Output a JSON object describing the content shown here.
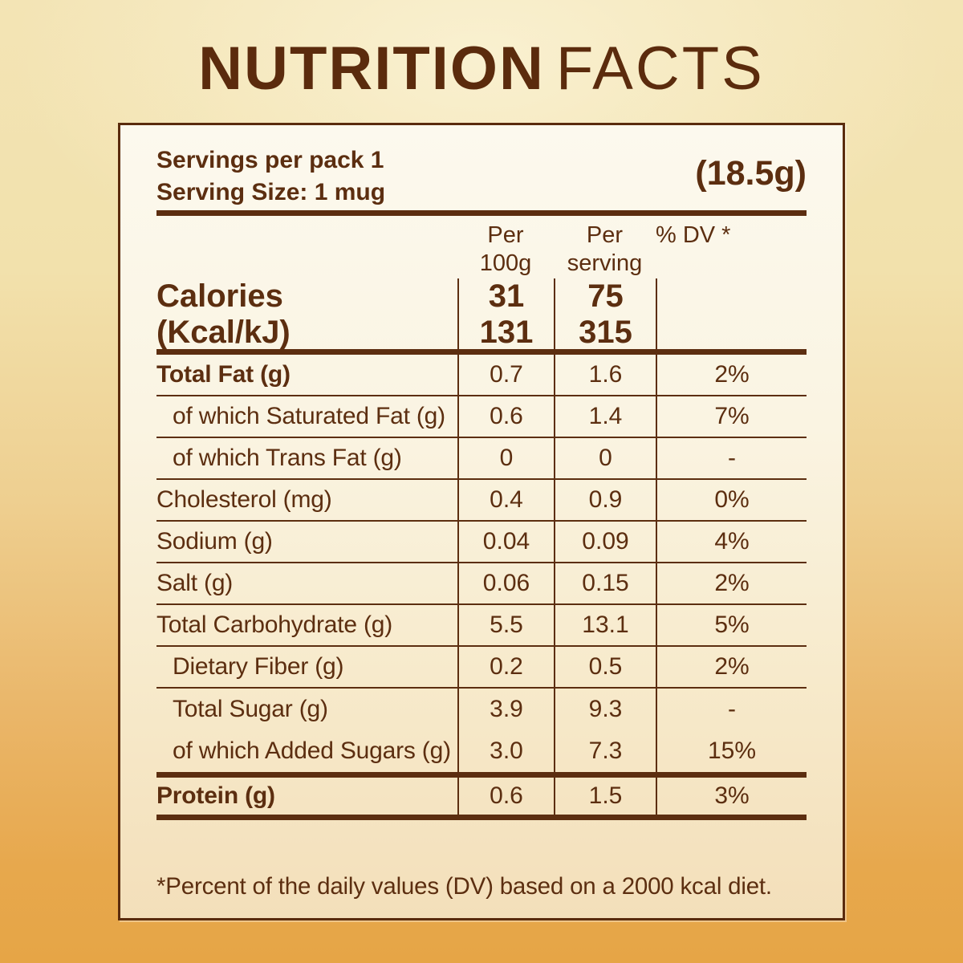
{
  "title": {
    "word_bold": "NUTRITION",
    "word_light": "FACTS"
  },
  "serving_info": {
    "servings_per_pack": "Servings per pack 1",
    "serving_size": "Serving Size: 1 mug",
    "weight": "(18.5g)"
  },
  "columns": {
    "per_100g": [
      "Per",
      "100g"
    ],
    "per_serving": [
      "Per",
      "serving"
    ],
    "dv": "% DV *"
  },
  "calories": {
    "label": [
      "Calories",
      "(Kcal/kJ)"
    ],
    "per_100g": [
      "31",
      "131"
    ],
    "per_serving": [
      "75",
      "315"
    ],
    "dv": ""
  },
  "rows": [
    {
      "label": "Total Fat (g)",
      "per_100g": "0.7",
      "per_serving": "1.6",
      "dv": "2%",
      "bold": true,
      "indent": false
    },
    {
      "label": "of which Saturated Fat (g)",
      "per_100g": "0.6",
      "per_serving": "1.4",
      "dv": "7%",
      "indent": true
    },
    {
      "label": "of which Trans Fat (g)",
      "per_100g": "0",
      "per_serving": "0",
      "dv": "-",
      "indent": true
    },
    {
      "label": "Cholesterol (mg)",
      "per_100g": "0.4",
      "per_serving": "0.9",
      "dv": "0%"
    },
    {
      "label": "Sodium (g)",
      "per_100g": "0.04",
      "per_serving": "0.09",
      "dv": "4%"
    },
    {
      "label": "Salt (g)",
      "per_100g": "0.06",
      "per_serving": "0.15",
      "dv": "2%"
    },
    {
      "label": "Total Carbohydrate (g)",
      "per_100g": "5.5",
      "per_serving": "13.1",
      "dv": "5%"
    },
    {
      "label": "Dietary Fiber (g)",
      "per_100g": "0.2",
      "per_serving": "0.5",
      "dv": "2%",
      "indent": true
    },
    {
      "label": "Total Sugar (g)",
      "per_100g": "3.9",
      "per_serving": "9.3",
      "dv": "-",
      "indent": true,
      "no_divider": true
    },
    {
      "label": "of which Added Sugars (g)",
      "per_100g": "3.0",
      "per_serving": "7.3",
      "dv": "15%",
      "indent": true,
      "no_divider": true
    },
    {
      "label": "Protein (g)",
      "per_100g": "0.6",
      "per_serving": "1.5",
      "dv": "3%",
      "bold": true,
      "group": "protein"
    }
  ],
  "footnote": "*Percent of the daily values (DV) based on a 2000 kcal diet.",
  "colors": {
    "text_brown": "#5C2E10",
    "border_brown": "#5A2B0D",
    "background_top": "#F3E4B5",
    "background_bottom": "#E6A546",
    "panel_top": "#FCF9EE",
    "panel_bottom": "#F3DFBA"
  }
}
